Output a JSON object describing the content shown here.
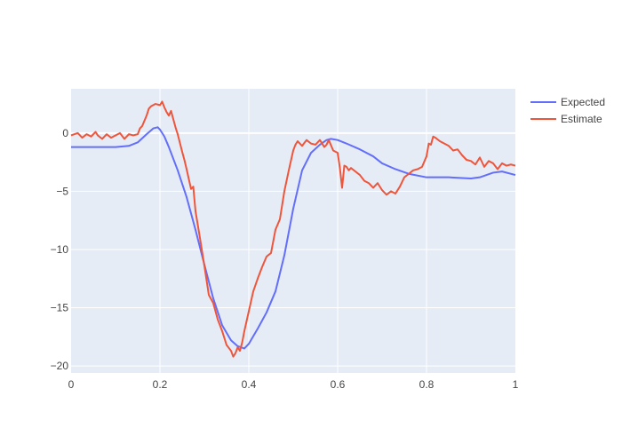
{
  "chart_data": {
    "type": "line",
    "title": "",
    "xlabel": "",
    "ylabel": "",
    "xlim": [
      0,
      1
    ],
    "ylim": [
      -20.6,
      3.8
    ],
    "grid": true,
    "legend_placement": "top-right",
    "plot_background": "#e5ecf6",
    "x_ticks": [
      0,
      0.2,
      0.4,
      0.6,
      0.8,
      1
    ],
    "x_tick_labels": [
      "0",
      "0.2",
      "0.4",
      "0.6",
      "0.8",
      "1"
    ],
    "y_ticks": [
      0,
      -5,
      -10,
      -15,
      -20
    ],
    "y_tick_labels": [
      "0",
      "−5",
      "−10",
      "−15",
      "−20"
    ],
    "series": [
      {
        "name": "Expected",
        "color": "#636efa",
        "x": [
          0,
          0.05,
          0.1,
          0.13,
          0.15,
          0.17,
          0.185,
          0.195,
          0.2,
          0.21,
          0.22,
          0.24,
          0.26,
          0.28,
          0.3,
          0.32,
          0.34,
          0.36,
          0.375,
          0.39,
          0.4,
          0.42,
          0.44,
          0.46,
          0.48,
          0.5,
          0.52,
          0.54,
          0.56,
          0.575,
          0.585,
          0.6,
          0.62,
          0.65,
          0.68,
          0.7,
          0.73,
          0.76,
          0.8,
          0.85,
          0.9,
          0.92,
          0.95,
          0.97,
          1
        ],
        "y": [
          -1.2,
          -1.2,
          -1.2,
          -1.1,
          -0.8,
          -0.1,
          0.4,
          0.5,
          0.3,
          -0.3,
          -1.2,
          -3.2,
          -5.5,
          -8.3,
          -11.3,
          -14.2,
          -16.5,
          -17.8,
          -18.3,
          -18.5,
          -18.1,
          -16.8,
          -15.4,
          -13.6,
          -10.5,
          -6.5,
          -3.2,
          -1.7,
          -1.0,
          -0.6,
          -0.5,
          -0.6,
          -0.9,
          -1.4,
          -2.0,
          -2.6,
          -3.1,
          -3.5,
          -3.8,
          -3.8,
          -3.9,
          -3.8,
          -3.4,
          -3.3,
          -3.6
        ]
      },
      {
        "name": "Estimate",
        "color": "#ef553b",
        "x": [
          0,
          0.015,
          0.025,
          0.035,
          0.045,
          0.055,
          0.06,
          0.07,
          0.08,
          0.09,
          0.1,
          0.11,
          0.12,
          0.13,
          0.14,
          0.15,
          0.155,
          0.16,
          0.17,
          0.175,
          0.18,
          0.19,
          0.2,
          0.205,
          0.21,
          0.215,
          0.22,
          0.225,
          0.23,
          0.235,
          0.24,
          0.25,
          0.255,
          0.26,
          0.27,
          0.275,
          0.28,
          0.29,
          0.3,
          0.31,
          0.32,
          0.33,
          0.34,
          0.35,
          0.36,
          0.365,
          0.37,
          0.375,
          0.38,
          0.385,
          0.39,
          0.4,
          0.41,
          0.42,
          0.43,
          0.44,
          0.45,
          0.46,
          0.47,
          0.48,
          0.49,
          0.5,
          0.505,
          0.51,
          0.52,
          0.53,
          0.54,
          0.55,
          0.56,
          0.57,
          0.575,
          0.58,
          0.59,
          0.6,
          0.605,
          0.61,
          0.615,
          0.62,
          0.625,
          0.63,
          0.64,
          0.65,
          0.66,
          0.67,
          0.68,
          0.69,
          0.7,
          0.71,
          0.72,
          0.73,
          0.74,
          0.75,
          0.76,
          0.77,
          0.78,
          0.79,
          0.8,
          0.805,
          0.81,
          0.815,
          0.82,
          0.83,
          0.84,
          0.85,
          0.86,
          0.87,
          0.88,
          0.89,
          0.9,
          0.91,
          0.92,
          0.93,
          0.94,
          0.95,
          0.96,
          0.97,
          0.98,
          0.99,
          1
        ],
        "y": [
          -0.2,
          0.0,
          -0.4,
          -0.1,
          -0.3,
          0.1,
          -0.2,
          -0.5,
          -0.1,
          -0.4,
          -0.2,
          0.0,
          -0.5,
          -0.1,
          -0.2,
          -0.1,
          0.4,
          0.6,
          1.5,
          2.1,
          2.3,
          2.5,
          2.4,
          2.7,
          2.2,
          1.8,
          1.5,
          1.9,
          1.2,
          0.5,
          -0.1,
          -1.6,
          -2.3,
          -3.1,
          -4.8,
          -4.6,
          -6.7,
          -9.0,
          -11.4,
          -13.9,
          -14.6,
          -16.0,
          -17.0,
          -18.2,
          -18.7,
          -19.2,
          -18.9,
          -18.4,
          -18.7,
          -18.0,
          -17.0,
          -15.3,
          -13.6,
          -12.5,
          -11.5,
          -10.6,
          -10.3,
          -8.3,
          -7.4,
          -5.0,
          -3.2,
          -1.5,
          -1.0,
          -0.7,
          -1.1,
          -0.6,
          -0.9,
          -1.0,
          -0.6,
          -1.2,
          -1.0,
          -0.6,
          -1.5,
          -1.7,
          -3.0,
          -4.7,
          -2.8,
          -2.9,
          -3.2,
          -3.0,
          -3.3,
          -3.6,
          -4.1,
          -4.3,
          -4.7,
          -4.3,
          -4.9,
          -5.3,
          -5.0,
          -5.2,
          -4.6,
          -3.8,
          -3.5,
          -3.2,
          -3.1,
          -2.9,
          -2.0,
          -0.9,
          -1.0,
          -0.3,
          -0.4,
          -0.7,
          -0.9,
          -1.1,
          -1.5,
          -1.4,
          -1.9,
          -2.3,
          -2.4,
          -2.7,
          -2.1,
          -2.9,
          -2.4,
          -2.6,
          -3.1,
          -2.6,
          -2.8,
          -2.7,
          -2.8
        ]
      }
    ]
  }
}
